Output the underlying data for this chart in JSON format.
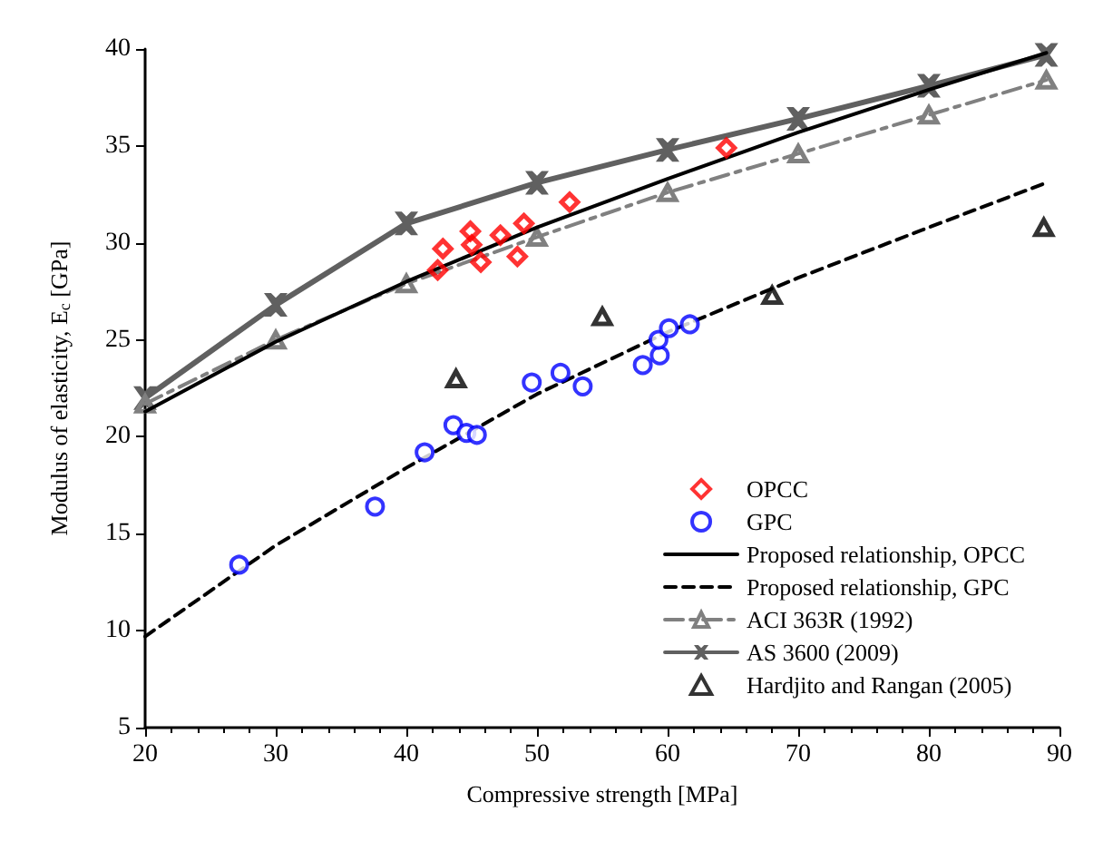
{
  "chart_data": {
    "type": "scatter",
    "xlabel": "Compressive strength [MPa]",
    "ylabel": "Modulus of elasticity, E$_{c}$ [GPa]",
    "xlim": [
      20,
      90
    ],
    "xticks": [
      20,
      30,
      40,
      50,
      60,
      70,
      80,
      90
    ],
    "ylim": [
      5,
      40
    ],
    "yticks": [
      5,
      10,
      15,
      20,
      25,
      30,
      35,
      40
    ],
    "grid": false,
    "legend": "bottom right",
    "series": [
      {
        "name": "OPCC",
        "marker": "diamond",
        "color": "#ff0000",
        "x": [
          42.4,
          42.8,
          44.9,
          45,
          45.7,
          47.2,
          48.5,
          49,
          52.5,
          64.5
        ],
        "values": [
          28.6,
          29.7,
          30.6,
          29.9,
          29.0,
          30.4,
          29.3,
          31.0,
          32.1,
          34.9
        ]
      },
      {
        "name": "GPC",
        "marker": "circle",
        "color": "#0000ff",
        "x": [
          27.2,
          37.6,
          41.4,
          43.6,
          44.6,
          45.4,
          49.6,
          51.8,
          53.5,
          58.1,
          59.4,
          59.3,
          60.1,
          61.7
        ],
        "values": [
          13.4,
          16.4,
          19.2,
          20.6,
          20.2,
          20.1,
          22.8,
          23.3,
          22.6,
          23.7,
          24.2,
          25.0,
          25.6,
          25.8
        ]
      },
      {
        "name": "Proposed relationship, OPCC",
        "type": "line",
        "marker": "none",
        "line_style": "solid",
        "color": "#000000",
        "x": [
          20,
          30,
          40,
          50,
          60,
          70,
          80,
          89
        ],
        "values": [
          21.3,
          24.9,
          28.0,
          30.8,
          33.3,
          35.7,
          37.9,
          39.8
        ]
      },
      {
        "name": "Proposed relationship, GPC",
        "type": "line",
        "marker": "none",
        "line_style": "dashed",
        "color": "#000000",
        "x": [
          20,
          30,
          40,
          50,
          60,
          70,
          80,
          89
        ],
        "values": [
          9.7,
          14.4,
          18.4,
          22.2,
          25.4,
          28.2,
          30.8,
          33.1
        ]
      },
      {
        "name": "ACI 363R (1992)",
        "type": "line",
        "marker": "triangle",
        "line_style": "dashdot",
        "color": "#808080",
        "x": [
          20,
          30,
          40,
          50,
          60,
          70,
          80,
          89
        ],
        "values": [
          21.7,
          25.0,
          27.9,
          30.3,
          32.6,
          34.6,
          36.6,
          38.4
        ]
      },
      {
        "name": "AS 3600 (2009)",
        "type": "line",
        "marker": "cross",
        "line_style": "solid",
        "color": "#606060",
        "x": [
          20,
          30,
          40,
          50,
          60,
          70,
          80,
          89
        ],
        "values": [
          22.0,
          26.8,
          31.0,
          33.1,
          34.8,
          36.4,
          38.1,
          39.7
        ]
      },
      {
        "name": "Hardjito and Rangan (2005)",
        "marker": "triangle",
        "color": "#000000",
        "x": [
          43.8,
          55,
          68,
          88.8
        ],
        "values": [
          23.0,
          26.2,
          27.3,
          30.8
        ]
      }
    ]
  }
}
